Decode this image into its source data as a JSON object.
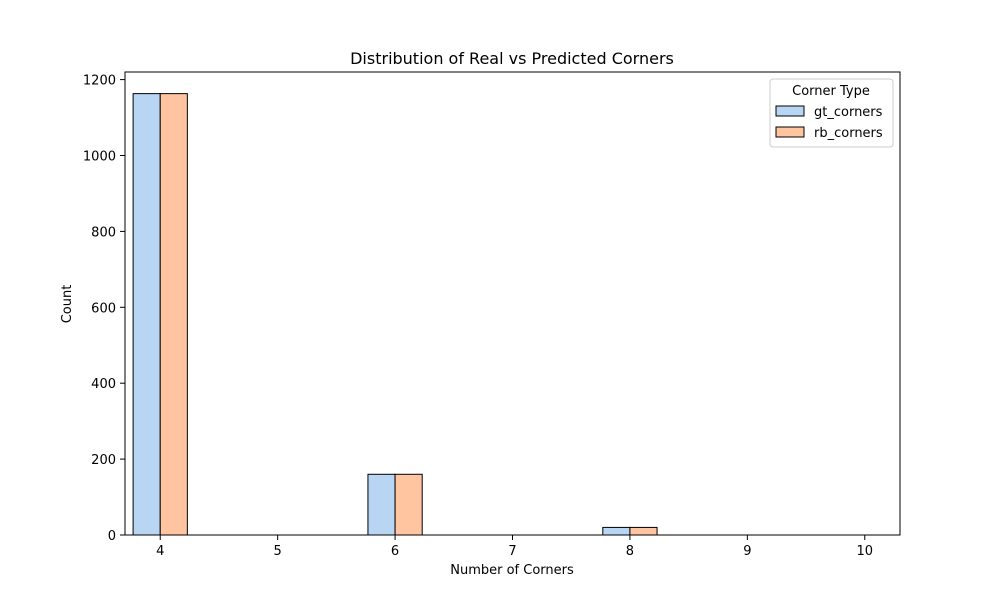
{
  "chart_data": {
    "type": "bar",
    "title": "Distribution of Real vs Predicted Corners",
    "xlabel": "Number of Corners",
    "ylabel": "Count",
    "xlim": [
      3.7,
      10.3
    ],
    "ylim": [
      0,
      1220
    ],
    "x_ticks": [
      4,
      5,
      6,
      7,
      8,
      9,
      10
    ],
    "y_ticks": [
      0,
      200,
      400,
      600,
      800,
      1000,
      1200
    ],
    "grid": false,
    "legend": {
      "title": "Corner Type",
      "placement": "top-right"
    },
    "bar_group_width": 0.462,
    "x": [
      4,
      6,
      8
    ],
    "series": [
      {
        "name": "gt_corners",
        "color": "#b8d6f3",
        "values": [
          1163,
          160,
          20
        ]
      },
      {
        "name": "rb_corners",
        "color": "#fec5a0",
        "values": [
          1163,
          160,
          20
        ]
      }
    ]
  }
}
